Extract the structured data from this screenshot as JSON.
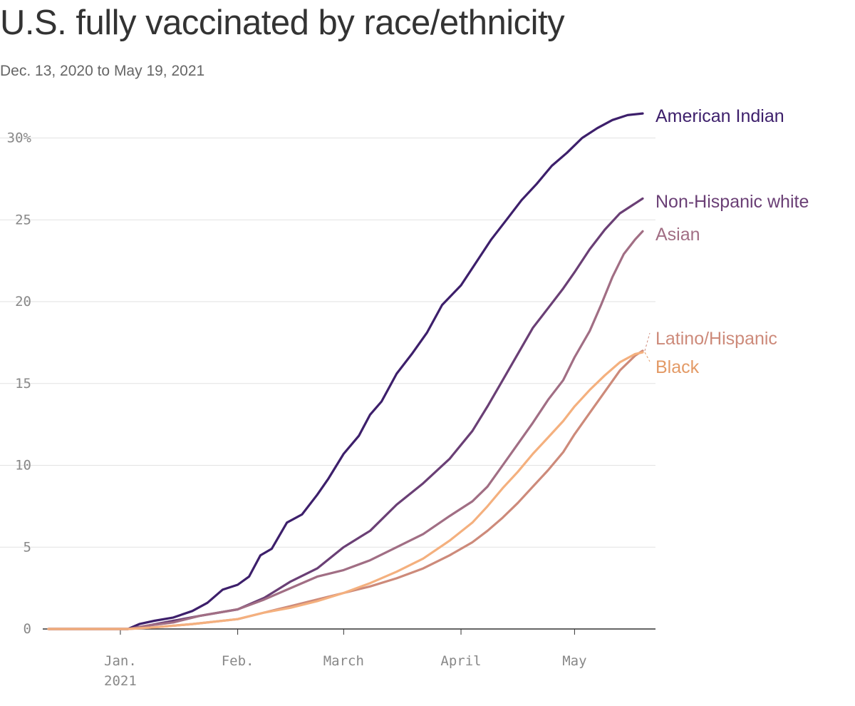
{
  "title": "U.S. fully vaccinated by race/ethnicity",
  "subtitle": "Dec. 13, 2020 to May 19, 2021",
  "chart_data": {
    "type": "line",
    "title": "U.S. fully vaccinated by race/ethnicity",
    "subtitle": "Dec. 13, 2020 to May 19, 2021",
    "xlabel": "",
    "ylabel": "",
    "x_range": [
      "2020-12-13",
      "2021-05-19"
    ],
    "ylim": [
      0,
      32
    ],
    "y_ticks": [
      0,
      5,
      10,
      15,
      20,
      25,
      30
    ],
    "y_tick_labels": [
      "0",
      "5",
      "10",
      "15",
      "20",
      "25",
      "30%"
    ],
    "x_ticks": [
      {
        "date": "2021-01-01",
        "label": "Jan.",
        "sublabel": "2021"
      },
      {
        "date": "2021-02-01",
        "label": "Feb.",
        "sublabel": ""
      },
      {
        "date": "2021-03-01",
        "label": "March",
        "sublabel": ""
      },
      {
        "date": "2021-04-01",
        "label": "April",
        "sublabel": ""
      },
      {
        "date": "2021-05-01",
        "label": "May",
        "sublabel": ""
      }
    ],
    "grid": true,
    "legend": "direct labels at right end of lines",
    "series": [
      {
        "name": "American Indian",
        "color": "#3d1f6b",
        "label_color": "#3d1f6b",
        "points": [
          [
            "2020-12-13",
            0
          ],
          [
            "2021-01-03",
            0
          ],
          [
            "2021-01-06",
            0.3
          ],
          [
            "2021-01-10",
            0.5
          ],
          [
            "2021-01-15",
            0.7
          ],
          [
            "2021-01-20",
            1.1
          ],
          [
            "2021-01-24",
            1.6
          ],
          [
            "2021-01-28",
            2.4
          ],
          [
            "2021-02-01",
            2.7
          ],
          [
            "2021-02-04",
            3.2
          ],
          [
            "2021-02-07",
            4.5
          ],
          [
            "2021-02-10",
            4.9
          ],
          [
            "2021-02-14",
            6.5
          ],
          [
            "2021-02-18",
            7.0
          ],
          [
            "2021-02-22",
            8.2
          ],
          [
            "2021-02-25",
            9.2
          ],
          [
            "2021-03-01",
            10.7
          ],
          [
            "2021-03-05",
            11.8
          ],
          [
            "2021-03-08",
            13.1
          ],
          [
            "2021-03-11",
            13.9
          ],
          [
            "2021-03-15",
            15.6
          ],
          [
            "2021-03-19",
            16.8
          ],
          [
            "2021-03-23",
            18.1
          ],
          [
            "2021-03-27",
            19.8
          ],
          [
            "2021-04-01",
            21.0
          ],
          [
            "2021-04-05",
            22.4
          ],
          [
            "2021-04-09",
            23.8
          ],
          [
            "2021-04-13",
            25.0
          ],
          [
            "2021-04-17",
            26.2
          ],
          [
            "2021-04-21",
            27.2
          ],
          [
            "2021-04-25",
            28.3
          ],
          [
            "2021-04-29",
            29.1
          ],
          [
            "2021-05-03",
            30.0
          ],
          [
            "2021-05-07",
            30.6
          ],
          [
            "2021-05-11",
            31.1
          ],
          [
            "2021-05-15",
            31.4
          ],
          [
            "2021-05-19",
            31.5
          ]
        ]
      },
      {
        "name": "Non-Hispanic white",
        "color": "#6a3f75",
        "label_color": "#6a3f75",
        "points": [
          [
            "2020-12-13",
            0
          ],
          [
            "2021-01-03",
            0
          ],
          [
            "2021-01-08",
            0.2
          ],
          [
            "2021-01-15",
            0.5
          ],
          [
            "2021-01-22",
            0.8
          ],
          [
            "2021-02-01",
            1.2
          ],
          [
            "2021-02-08",
            1.9
          ],
          [
            "2021-02-15",
            2.9
          ],
          [
            "2021-02-22",
            3.7
          ],
          [
            "2021-03-01",
            5.0
          ],
          [
            "2021-03-08",
            6.0
          ],
          [
            "2021-03-15",
            7.6
          ],
          [
            "2021-03-22",
            8.9
          ],
          [
            "2021-03-29",
            10.4
          ],
          [
            "2021-04-04",
            12.1
          ],
          [
            "2021-04-08",
            13.6
          ],
          [
            "2021-04-12",
            15.2
          ],
          [
            "2021-04-16",
            16.8
          ],
          [
            "2021-04-20",
            18.4
          ],
          [
            "2021-04-24",
            19.6
          ],
          [
            "2021-04-28",
            20.8
          ],
          [
            "2021-05-01",
            21.8
          ],
          [
            "2021-05-05",
            23.2
          ],
          [
            "2021-05-09",
            24.4
          ],
          [
            "2021-05-13",
            25.4
          ],
          [
            "2021-05-17",
            26.0
          ],
          [
            "2021-05-19",
            26.3
          ]
        ]
      },
      {
        "name": "Asian",
        "color": "#a16e84",
        "label_color": "#a16e84",
        "points": [
          [
            "2020-12-13",
            0
          ],
          [
            "2021-01-03",
            0
          ],
          [
            "2021-01-08",
            0.2
          ],
          [
            "2021-01-15",
            0.4
          ],
          [
            "2021-01-22",
            0.8
          ],
          [
            "2021-02-01",
            1.2
          ],
          [
            "2021-02-08",
            1.8
          ],
          [
            "2021-02-15",
            2.5
          ],
          [
            "2021-02-22",
            3.2
          ],
          [
            "2021-03-01",
            3.6
          ],
          [
            "2021-03-08",
            4.2
          ],
          [
            "2021-03-15",
            5.0
          ],
          [
            "2021-03-22",
            5.8
          ],
          [
            "2021-03-29",
            6.9
          ],
          [
            "2021-04-04",
            7.8
          ],
          [
            "2021-04-08",
            8.7
          ],
          [
            "2021-04-12",
            10.0
          ],
          [
            "2021-04-16",
            11.3
          ],
          [
            "2021-04-20",
            12.6
          ],
          [
            "2021-04-24",
            14.0
          ],
          [
            "2021-04-28",
            15.2
          ],
          [
            "2021-05-01",
            16.6
          ],
          [
            "2021-05-05",
            18.2
          ],
          [
            "2021-05-08",
            19.8
          ],
          [
            "2021-05-11",
            21.5
          ],
          [
            "2021-05-14",
            22.9
          ],
          [
            "2021-05-17",
            23.8
          ],
          [
            "2021-05-19",
            24.3
          ]
        ]
      },
      {
        "name": "Latino/Hispanic",
        "color": "#cd8a7a",
        "label_color": "#cd8a7a",
        "points": [
          [
            "2020-12-13",
            0
          ],
          [
            "2021-01-03",
            0
          ],
          [
            "2021-01-10",
            0.1
          ],
          [
            "2021-01-20",
            0.3
          ],
          [
            "2021-02-01",
            0.6
          ],
          [
            "2021-02-08",
            1.0
          ],
          [
            "2021-02-15",
            1.4
          ],
          [
            "2021-02-22",
            1.8
          ],
          [
            "2021-03-01",
            2.2
          ],
          [
            "2021-03-08",
            2.6
          ],
          [
            "2021-03-15",
            3.1
          ],
          [
            "2021-03-22",
            3.7
          ],
          [
            "2021-03-29",
            4.5
          ],
          [
            "2021-04-04",
            5.3
          ],
          [
            "2021-04-08",
            6.0
          ],
          [
            "2021-04-12",
            6.8
          ],
          [
            "2021-04-16",
            7.7
          ],
          [
            "2021-04-20",
            8.7
          ],
          [
            "2021-04-24",
            9.7
          ],
          [
            "2021-04-28",
            10.8
          ],
          [
            "2021-05-01",
            11.9
          ],
          [
            "2021-05-05",
            13.2
          ],
          [
            "2021-05-09",
            14.5
          ],
          [
            "2021-05-13",
            15.8
          ],
          [
            "2021-05-17",
            16.7
          ],
          [
            "2021-05-19",
            17.0
          ]
        ]
      },
      {
        "name": "Black",
        "color": "#f4b07e",
        "label_color": "#e39a66",
        "points": [
          [
            "2020-12-13",
            0
          ],
          [
            "2021-01-03",
            0
          ],
          [
            "2021-01-10",
            0.1
          ],
          [
            "2021-01-20",
            0.3
          ],
          [
            "2021-02-01",
            0.6
          ],
          [
            "2021-02-08",
            1.0
          ],
          [
            "2021-02-15",
            1.3
          ],
          [
            "2021-02-22",
            1.7
          ],
          [
            "2021-03-01",
            2.2
          ],
          [
            "2021-03-08",
            2.8
          ],
          [
            "2021-03-15",
            3.5
          ],
          [
            "2021-03-22",
            4.3
          ],
          [
            "2021-03-29",
            5.4
          ],
          [
            "2021-04-04",
            6.5
          ],
          [
            "2021-04-08",
            7.5
          ],
          [
            "2021-04-12",
            8.6
          ],
          [
            "2021-04-16",
            9.6
          ],
          [
            "2021-04-20",
            10.7
          ],
          [
            "2021-04-24",
            11.7
          ],
          [
            "2021-04-28",
            12.7
          ],
          [
            "2021-05-01",
            13.6
          ],
          [
            "2021-05-05",
            14.6
          ],
          [
            "2021-05-09",
            15.5
          ],
          [
            "2021-05-13",
            16.3
          ],
          [
            "2021-05-17",
            16.8
          ],
          [
            "2021-05-19",
            16.9
          ]
        ]
      }
    ]
  }
}
